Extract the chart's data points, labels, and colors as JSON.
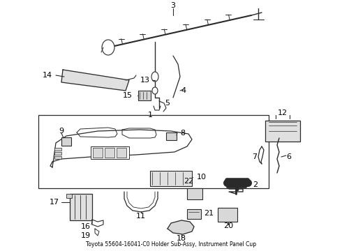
{
  "title": "Toyota 55604-16041-C0 Holder Sub-Assy, Instrument Panel Cup",
  "background_color": "#ffffff",
  "fig_width": 4.9,
  "fig_height": 3.6,
  "dpi": 100,
  "line_color": "#2a2a2a",
  "text_color": "#000000",
  "font_size": 7.5
}
